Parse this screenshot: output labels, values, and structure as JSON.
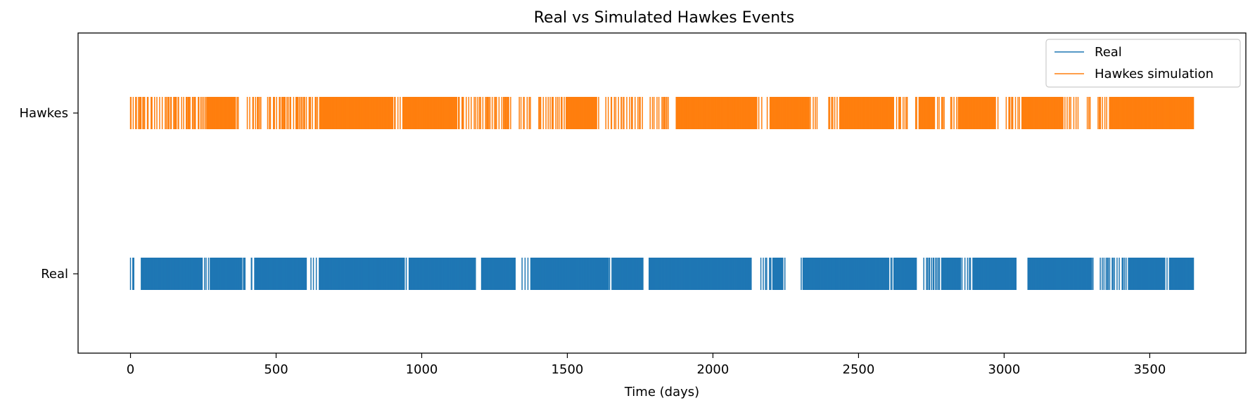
{
  "chart_data": {
    "type": "eventplot",
    "title": "Real vs Simulated Hawkes Events",
    "xlabel": "Time (days)",
    "ylabel": "",
    "xlim": [
      -180,
      3830
    ],
    "xticks": [
      0,
      500,
      1000,
      1500,
      2000,
      2500,
      3000,
      3500
    ],
    "xtick_labels": [
      "0",
      "500",
      "1000",
      "1500",
      "2000",
      "2500",
      "3000",
      "3500"
    ],
    "yticks": [
      "Hawkes",
      "Real"
    ],
    "grid": false,
    "legend": {
      "placement": "top-right",
      "entries": [
        "Real",
        "Hawkes simulation"
      ]
    },
    "series": [
      {
        "name": "Real",
        "row_label": "Real",
        "color": "#1f77b4",
        "time_range": [
          0,
          3650
        ],
        "dense_spans": [
          [
            35,
            245
          ],
          [
            270,
            380
          ],
          [
            420,
            600
          ],
          [
            640,
            940
          ],
          [
            950,
            1180
          ],
          [
            1200,
            1320
          ],
          [
            1370,
            1640
          ],
          [
            1650,
            1760
          ],
          [
            1780,
            2130
          ],
          [
            2200,
            2240
          ],
          [
            2310,
            2600
          ],
          [
            2620,
            2700
          ],
          [
            2780,
            2850
          ],
          [
            2890,
            3040
          ],
          [
            3080,
            3300
          ],
          [
            3420,
            3550
          ],
          [
            3560,
            3650
          ]
        ],
        "gaps": [
          [
            12,
            35
          ],
          [
            395,
            410
          ],
          [
            605,
            615
          ],
          [
            1185,
            1200
          ],
          [
            1325,
            1340
          ],
          [
            1760,
            1775
          ],
          [
            2140,
            2160
          ],
          [
            2250,
            2300
          ],
          [
            2700,
            2720
          ],
          [
            3045,
            3080
          ],
          [
            3310,
            3330
          ]
        ]
      },
      {
        "name": "Hawkes simulation",
        "row_label": "Hawkes",
        "color": "#ff7f0e",
        "time_range": [
          0,
          3650
        ],
        "dense_spans": [
          [
            260,
            360
          ],
          [
            650,
            900
          ],
          [
            930,
            1120
          ],
          [
            1490,
            1600
          ],
          [
            1870,
            2150
          ],
          [
            2190,
            2330
          ],
          [
            2430,
            2620
          ],
          [
            2700,
            2760
          ],
          [
            2840,
            2970
          ],
          [
            3060,
            3200
          ],
          [
            3360,
            3650
          ]
        ],
        "gaps": [
          [
            370,
            400
          ],
          [
            455,
            470
          ],
          [
            1310,
            1330
          ],
          [
            1380,
            1400
          ],
          [
            1610,
            1625
          ],
          [
            1760,
            1780
          ],
          [
            1855,
            1865
          ],
          [
            2170,
            2180
          ],
          [
            2360,
            2390
          ],
          [
            2670,
            2690
          ],
          [
            2800,
            2815
          ],
          [
            2980,
            3000
          ],
          [
            3260,
            3285
          ],
          [
            3300,
            3320
          ]
        ]
      }
    ]
  }
}
